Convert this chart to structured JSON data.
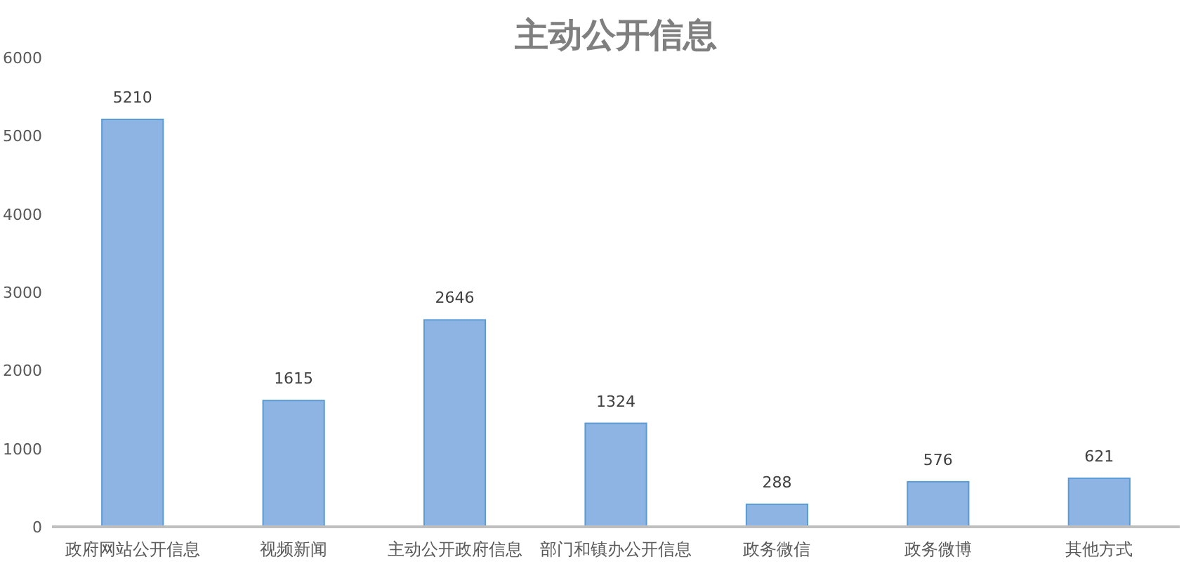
{
  "chart_data": {
    "type": "bar",
    "title": "主动公开信息",
    "categories": [
      "政府网站公开信息",
      "视频新闻",
      "主动公开政府信息",
      "部门和镇办公开信息",
      "政务微信",
      "政务微博",
      "其他方式"
    ],
    "values": [
      5210,
      1615,
      2646,
      1324,
      288,
      576,
      621
    ],
    "color": "#8db4e2",
    "ylim": [
      0,
      6000
    ],
    "yticks": [
      0,
      1000,
      2000,
      3000,
      4000,
      5000,
      6000
    ],
    "data_labels": true
  }
}
